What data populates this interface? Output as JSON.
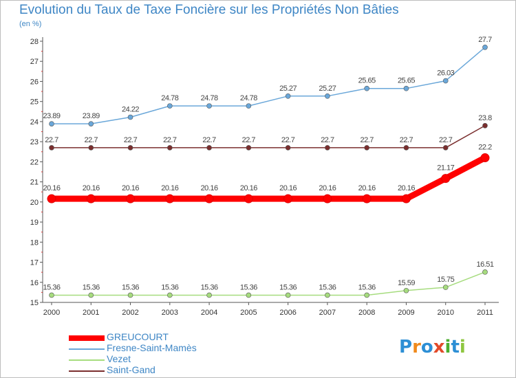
{
  "header": {
    "title": "Evolution du Taux de Taxe Foncière sur les Propriétés Non Bâties",
    "unit": "(en %)"
  },
  "logo": {
    "letters": [
      "P",
      "r",
      "o",
      "x",
      "i",
      "t",
      "i"
    ],
    "colors": [
      "#2d8fd5",
      "#f08a1c",
      "#2d8fd5",
      "#e24a2a",
      "#4caf2f",
      "#2d8fd5",
      "#8ec63f"
    ]
  },
  "chart_data": {
    "type": "line",
    "title": "Evolution du Taux de Taxe Foncière sur les Propriétés Non Bâties",
    "ylabel": "(en %)",
    "xlabel": "",
    "x": [
      "2000",
      "2001",
      "2002",
      "2003",
      "2004",
      "2005",
      "2006",
      "2007",
      "2008",
      "2009",
      "2010",
      "2011"
    ],
    "ylim": [
      15,
      28
    ],
    "yticks": [
      "15",
      "16",
      "17",
      "18",
      "19",
      "20",
      "21",
      "22",
      "23",
      "24",
      "25",
      "26",
      "27",
      "28"
    ],
    "grid": "none",
    "legend_position": "bottom-left",
    "series": [
      {
        "name": "GREUCOURT",
        "color": "#ff0000",
        "values": [
          20.16,
          20.16,
          20.16,
          20.16,
          20.16,
          20.16,
          20.16,
          20.16,
          20.16,
          20.16,
          21.17,
          22.2
        ],
        "labels": [
          "20.16",
          "20.16",
          "20.16",
          "20.16",
          "20.16",
          "20.16",
          "20.16",
          "20.16",
          "20.16",
          "20.16",
          "21.17",
          "22.2"
        ]
      },
      {
        "name": "Fresne-Saint-Mamès",
        "color": "#6aa7d9",
        "values": [
          23.89,
          23.89,
          24.22,
          24.78,
          24.78,
          24.78,
          25.27,
          25.27,
          25.65,
          25.65,
          26.03,
          27.7
        ],
        "labels": [
          "23.89",
          "23.89",
          "24.22",
          "24.78",
          "24.78",
          "24.78",
          "25.27",
          "25.27",
          "25.65",
          "25.65",
          "26.03",
          "27.7"
        ]
      },
      {
        "name": "Vezet",
        "color": "#a6dc7e",
        "values": [
          15.36,
          15.36,
          15.36,
          15.36,
          15.36,
          15.36,
          15.36,
          15.36,
          15.36,
          15.59,
          15.75,
          16.51
        ],
        "labels": [
          "15.36",
          "15.36",
          "15.36",
          "15.36",
          "15.36",
          "15.36",
          "15.36",
          "15.36",
          "15.36",
          "15.59",
          "15.75",
          "16.51"
        ]
      },
      {
        "name": "Saint-Gand",
        "color": "#7a2e2e",
        "values": [
          22.7,
          22.7,
          22.7,
          22.7,
          22.7,
          22.7,
          22.7,
          22.7,
          22.7,
          22.7,
          22.7,
          23.8
        ],
        "labels": [
          "22.7",
          "22.7",
          "22.7",
          "22.7",
          "22.7",
          "22.7",
          "22.7",
          "22.7",
          "22.7",
          "22.7",
          "22.7",
          "23.8"
        ]
      }
    ]
  }
}
